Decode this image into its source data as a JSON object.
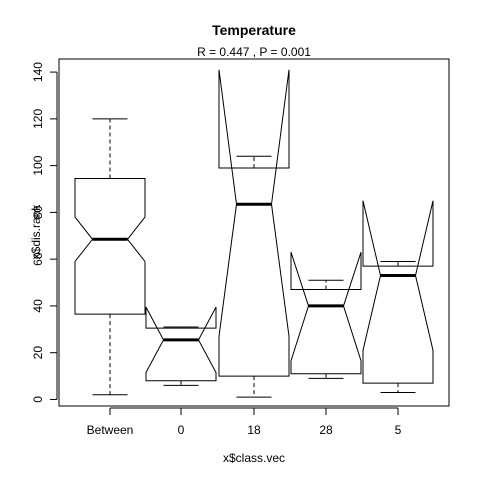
{
  "chart_data": {
    "type": "boxplot",
    "notched": true,
    "title": "Temperature",
    "subtitle": "R =  0.447 ,  P =  0.001",
    "xlabel": "x$class.vec",
    "ylabel": "x$dis.rank",
    "ylim": [
      -2.8,
      145.6
    ],
    "yticks": [
      0,
      20,
      40,
      60,
      80,
      100,
      120,
      140
    ],
    "grid": false,
    "categories": [
      "Between",
      "0",
      "18",
      "28",
      "5"
    ],
    "boxes": [
      {
        "category": "Between",
        "whisker_low": 2,
        "q1": 36.5,
        "median": 68.5,
        "q3": 94.5,
        "whisker_high": 120,
        "notch_low": 59.0,
        "notch_high": 78.0
      },
      {
        "category": "0",
        "whisker_low": 6,
        "q1": 8,
        "median": 25.5,
        "q3": 30.5,
        "whisker_high": 31,
        "notch_low": 11.5,
        "notch_high": 39.5
      },
      {
        "category": "18",
        "whisker_low": 1,
        "q1": 10,
        "median": 83.5,
        "q3": 99,
        "whisker_high": 104,
        "notch_low": 27.0,
        "notch_high": 141.0
      },
      {
        "category": "28",
        "whisker_low": 9,
        "q1": 11,
        "median": 40,
        "q3": 47,
        "whisker_high": 51,
        "notch_low": 16.5,
        "notch_high": 63.0
      },
      {
        "category": "5",
        "whisker_low": 3,
        "q1": 7,
        "median": 53,
        "q3": 57,
        "whisker_high": 59,
        "notch_low": 21.0,
        "notch_high": 85.0
      }
    ]
  }
}
